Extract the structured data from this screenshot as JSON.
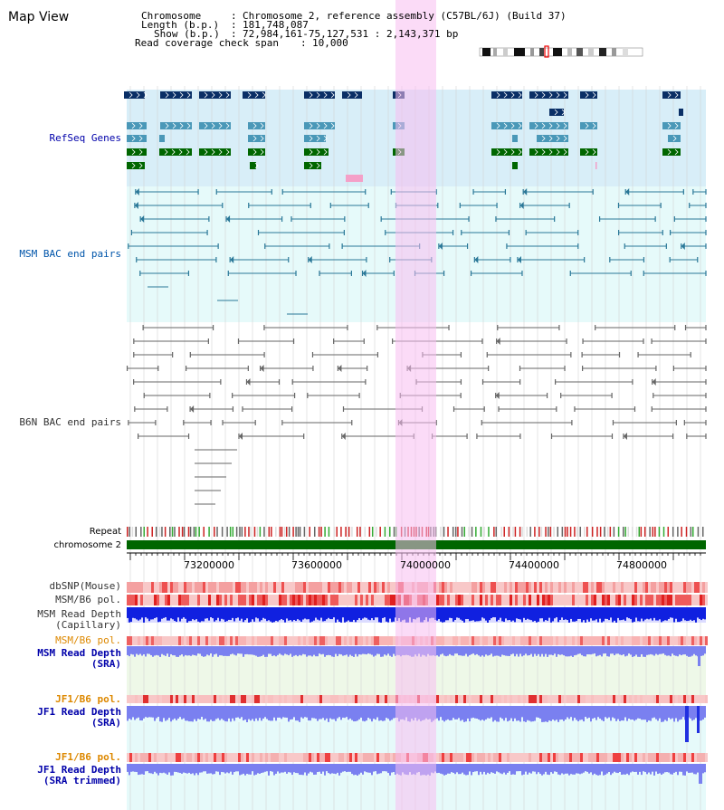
{
  "title": "Map View",
  "info": {
    "chromosome_label": "Chromosome",
    "chromosome_value": "Chromosome 2, reference assembly (C57BL/6J) (Build 37)",
    "length_label": "Length (b.p.)",
    "length_value": "181,748,087",
    "show_label": "Show (b.p.)",
    "show_value": "72,984,161-75,127,531 : 2,143,371 bp",
    "span_label": "Read coverage check span",
    "span_value": "10,000"
  },
  "tracks": {
    "refseq": "RefSeq Genes",
    "msm_bac": "MSM BAC end pairs",
    "b6n_bac": "B6N BAC end pairs",
    "repeat": "Repeat",
    "chromosome": "chromosome 2",
    "dbsnp": "dbSNP(Mouse)",
    "msm_b6_pol_1": "MSM/B6 pol.",
    "msm_depth_cap_1": "MSM Read Depth",
    "msm_depth_cap_2": "(Capillary)",
    "msm_b6_pol_2": "MSM/B6 pol.",
    "msm_depth_sra_1": "MSM Read Depth",
    "msm_depth_sra_2": "(SRA)",
    "jf1_pol_1": "JF1/B6 pol.",
    "jf1_depth_sra_1": "JF1 Read Depth",
    "jf1_depth_sra_2": "(SRA)",
    "jf1_pol_2": "JF1/B6 pol.",
    "jf1_depth_trim_1": "JF1 Read Depth",
    "jf1_depth_trim_2": "(SRA trimmed)"
  },
  "axis": {
    "ticks": [
      "73200000",
      "73600000",
      "74000000",
      "74400000",
      "74800000"
    ]
  },
  "colors": {
    "highlight": "#f8d8f0",
    "refseq_bg": "#d8eef8",
    "bac_bg": "#e6fafa",
    "dark_blue": "#0a2f66",
    "mid_blue": "#4a98b8",
    "green": "#006600",
    "label_blue": "#0000aa",
    "label_orange": "#dd8800",
    "depth_blue": "#1020e0",
    "depth_light": "#7a80f0"
  }
}
